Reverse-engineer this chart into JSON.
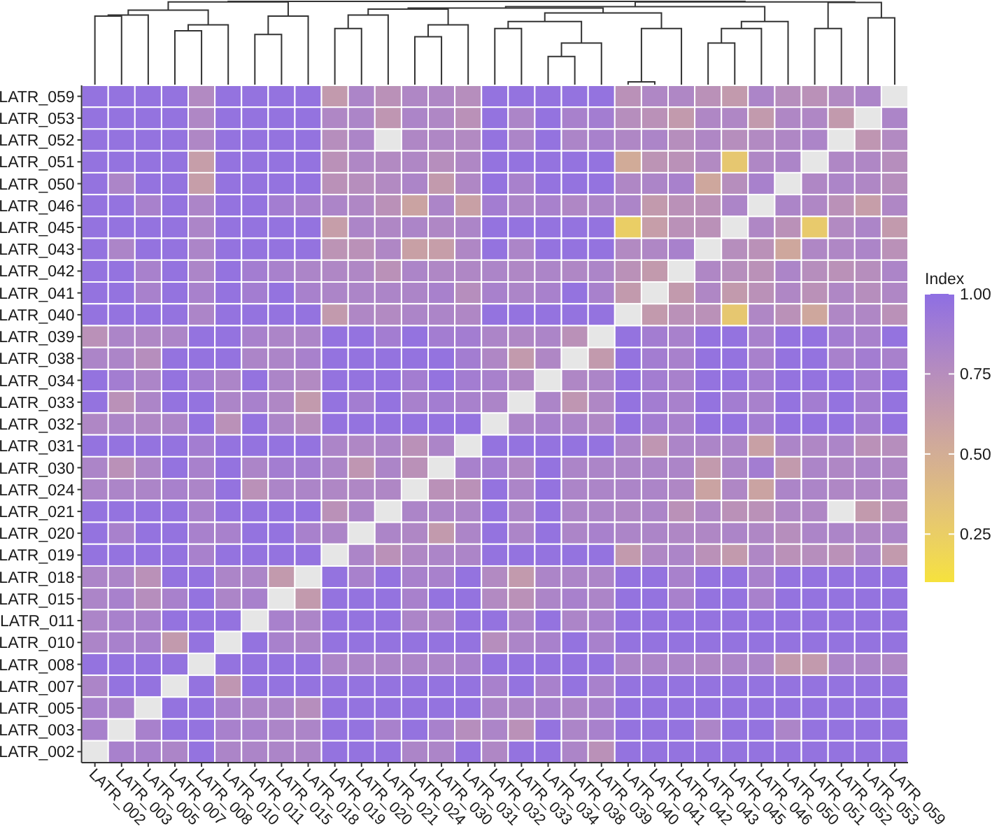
{
  "chart_data": {
    "type": "heatmap",
    "categories": [
      "LATR_002",
      "LATR_003",
      "LATR_005",
      "LATR_007",
      "LATR_008",
      "LATR_010",
      "LATR_011",
      "LATR_015",
      "LATR_018",
      "LATR_019",
      "LATR_020",
      "LATR_021",
      "LATR_024",
      "LATR_030",
      "LATR_031",
      "LATR_032",
      "LATR_033",
      "LATR_034",
      "LATR_038",
      "LATR_039",
      "LATR_040",
      "LATR_041",
      "LATR_042",
      "LATR_043",
      "LATR_045",
      "LATR_046",
      "LATR_050",
      "LATR_051",
      "LATR_052",
      "LATR_053",
      "LATR_059"
    ],
    "y_categories": [
      "LATR_059",
      "LATR_053",
      "LATR_052",
      "LATR_051",
      "LATR_050",
      "LATR_046",
      "LATR_045",
      "LATR_043",
      "LATR_042",
      "LATR_041",
      "LATR_040",
      "LATR_039",
      "LATR_038",
      "LATR_034",
      "LATR_033",
      "LATR_032",
      "LATR_031",
      "LATR_030",
      "LATR_024",
      "LATR_021",
      "LATR_020",
      "LATR_019",
      "LATR_018",
      "LATR_015",
      "LATR_011",
      "LATR_010",
      "LATR_008",
      "LATR_007",
      "LATR_005",
      "LATR_003",
      "LATR_002"
    ],
    "cells": [
      [
        0.97,
        0.97,
        0.97,
        0.97,
        0.78,
        0.97,
        0.97,
        0.97,
        0.97,
        0.65,
        0.82,
        0.72,
        0.8,
        0.8,
        0.75,
        0.97,
        0.97,
        0.97,
        0.97,
        0.97,
        0.72,
        0.8,
        0.8,
        0.72,
        0.65,
        0.82,
        0.75,
        0.72,
        0.78,
        0.82,
        null
      ],
      [
        0.97,
        0.97,
        0.97,
        0.97,
        0.8,
        0.97,
        0.97,
        0.97,
        0.97,
        0.8,
        0.82,
        0.68,
        0.82,
        0.8,
        0.72,
        0.97,
        0.82,
        0.97,
        0.85,
        0.88,
        0.75,
        0.72,
        0.65,
        0.8,
        0.8,
        0.65,
        0.8,
        0.8,
        0.65,
        null,
        0.82
      ],
      [
        0.97,
        0.97,
        0.97,
        0.97,
        0.8,
        0.97,
        0.97,
        0.97,
        0.97,
        0.75,
        0.82,
        null,
        0.8,
        0.8,
        0.78,
        0.97,
        0.82,
        0.97,
        0.82,
        0.85,
        0.8,
        0.82,
        0.75,
        0.8,
        0.75,
        0.78,
        0.8,
        0.82,
        null,
        0.68,
        0.78
      ],
      [
        0.97,
        0.97,
        0.97,
        0.97,
        0.62,
        0.97,
        0.97,
        0.97,
        0.97,
        0.72,
        0.8,
        0.78,
        0.8,
        0.75,
        0.8,
        0.97,
        0.97,
        0.97,
        0.97,
        0.97,
        0.52,
        0.7,
        0.72,
        0.78,
        0.3,
        0.8,
        0.82,
        null,
        0.8,
        0.8,
        0.75
      ],
      [
        0.97,
        0.82,
        0.97,
        0.97,
        0.62,
        0.97,
        0.97,
        0.97,
        0.97,
        0.72,
        0.75,
        0.78,
        0.82,
        0.65,
        0.8,
        0.97,
        0.85,
        0.97,
        0.97,
        0.97,
        0.8,
        0.82,
        0.85,
        0.55,
        0.75,
        0.85,
        null,
        0.8,
        0.82,
        0.8,
        0.75
      ],
      [
        0.97,
        0.97,
        0.85,
        0.97,
        0.82,
        0.97,
        0.97,
        0.88,
        0.85,
        0.82,
        0.8,
        0.72,
        0.58,
        0.82,
        0.6,
        0.88,
        0.82,
        0.85,
        0.8,
        0.82,
        0.82,
        0.65,
        0.72,
        0.72,
        0.82,
        null,
        0.82,
        0.8,
        0.72,
        0.62,
        0.8
      ],
      [
        0.97,
        0.97,
        0.97,
        0.97,
        0.82,
        0.97,
        0.97,
        0.97,
        0.97,
        0.62,
        0.82,
        0.8,
        0.82,
        0.8,
        0.82,
        0.97,
        0.97,
        0.97,
        0.97,
        0.97,
        0.25,
        0.62,
        0.72,
        0.72,
        null,
        0.8,
        0.72,
        0.28,
        0.78,
        0.82,
        0.65
      ],
      [
        0.97,
        0.82,
        0.97,
        0.97,
        0.82,
        0.97,
        0.97,
        0.97,
        0.97,
        0.7,
        0.72,
        0.8,
        0.6,
        0.62,
        0.8,
        0.97,
        0.82,
        0.97,
        0.97,
        0.97,
        0.78,
        0.8,
        0.85,
        null,
        0.75,
        0.72,
        0.55,
        0.8,
        0.8,
        0.82,
        0.72
      ],
      [
        0.97,
        0.97,
        0.85,
        0.97,
        0.82,
        0.97,
        0.88,
        0.85,
        0.82,
        0.8,
        0.8,
        0.72,
        0.82,
        0.8,
        0.8,
        0.82,
        0.8,
        0.82,
        0.8,
        0.82,
        0.72,
        0.65,
        null,
        0.8,
        0.75,
        0.72,
        0.82,
        0.75,
        0.72,
        0.75,
        0.82
      ],
      [
        0.97,
        0.97,
        0.85,
        0.97,
        0.85,
        0.97,
        0.88,
        0.97,
        0.85,
        0.82,
        0.82,
        0.82,
        0.82,
        0.85,
        0.75,
        0.85,
        0.82,
        0.85,
        0.97,
        0.85,
        0.65,
        null,
        0.65,
        0.8,
        0.65,
        0.72,
        0.8,
        0.72,
        0.8,
        0.75,
        0.8
      ],
      [
        0.97,
        0.97,
        0.97,
        0.97,
        0.82,
        0.97,
        0.97,
        0.97,
        0.97,
        0.65,
        0.8,
        0.78,
        0.82,
        0.82,
        0.8,
        0.97,
        0.97,
        0.97,
        0.97,
        0.97,
        null,
        0.65,
        0.72,
        0.72,
        0.3,
        0.8,
        0.72,
        0.55,
        0.8,
        0.8,
        0.72
      ],
      [
        0.72,
        0.82,
        0.8,
        0.82,
        0.97,
        0.97,
        0.85,
        0.82,
        0.82,
        0.97,
        0.97,
        0.88,
        0.97,
        0.88,
        0.88,
        0.82,
        0.8,
        0.82,
        0.72,
        null,
        0.97,
        0.88,
        0.85,
        0.97,
        0.97,
        0.85,
        0.97,
        0.97,
        0.88,
        0.85,
        0.97
      ],
      [
        0.82,
        0.82,
        0.75,
        0.97,
        0.97,
        0.97,
        0.82,
        0.82,
        0.85,
        0.97,
        0.97,
        0.97,
        0.97,
        0.97,
        0.88,
        0.8,
        0.65,
        0.8,
        null,
        0.65,
        0.97,
        0.88,
        0.85,
        0.97,
        0.97,
        0.85,
        0.97,
        0.97,
        0.85,
        0.88,
        0.85
      ],
      [
        0.97,
        0.88,
        0.82,
        0.97,
        0.88,
        0.82,
        0.97,
        0.82,
        0.78,
        0.97,
        0.97,
        0.97,
        0.88,
        0.97,
        0.88,
        0.85,
        0.8,
        null,
        0.8,
        0.82,
        0.97,
        0.88,
        0.85,
        0.97,
        0.97,
        0.88,
        0.97,
        0.97,
        0.97,
        0.88,
        0.97
      ],
      [
        0.97,
        0.72,
        0.82,
        0.97,
        0.97,
        0.82,
        0.85,
        0.8,
        0.65,
        0.97,
        0.88,
        0.97,
        0.85,
        0.88,
        0.85,
        0.82,
        null,
        0.82,
        0.68,
        0.8,
        0.97,
        0.88,
        0.85,
        0.97,
        0.88,
        0.85,
        0.97,
        0.88,
        0.97,
        0.88,
        0.97
      ],
      [
        0.8,
        0.82,
        0.8,
        0.82,
        0.97,
        0.72,
        0.97,
        0.82,
        0.75,
        0.97,
        0.97,
        0.97,
        0.97,
        0.97,
        0.97,
        null,
        0.82,
        0.85,
        0.82,
        0.8,
        0.97,
        0.88,
        0.85,
        0.97,
        0.97,
        0.88,
        0.97,
        0.97,
        0.97,
        0.88,
        0.97
      ],
      [
        0.97,
        0.97,
        0.97,
        0.97,
        0.88,
        0.97,
        0.97,
        0.97,
        0.97,
        0.82,
        0.8,
        0.82,
        0.72,
        0.82,
        null,
        0.97,
        0.97,
        0.97,
        0.97,
        0.97,
        0.82,
        0.68,
        0.82,
        0.82,
        0.82,
        0.6,
        0.82,
        0.8,
        0.82,
        0.72,
        0.75
      ],
      [
        0.82,
        0.72,
        0.82,
        0.97,
        0.85,
        0.97,
        0.82,
        0.88,
        0.88,
        0.82,
        0.68,
        0.82,
        0.72,
        null,
        0.85,
        0.88,
        0.8,
        0.97,
        0.82,
        0.82,
        0.82,
        0.82,
        0.82,
        0.65,
        0.82,
        0.88,
        0.65,
        0.82,
        0.8,
        0.82,
        0.8
      ],
      [
        0.82,
        0.82,
        0.82,
        0.85,
        0.82,
        0.97,
        0.72,
        0.82,
        0.82,
        0.8,
        0.8,
        0.8,
        null,
        0.72,
        0.72,
        0.97,
        0.82,
        0.97,
        0.82,
        0.82,
        0.82,
        0.82,
        0.8,
        0.58,
        0.8,
        0.58,
        0.82,
        0.82,
        0.8,
        0.8,
        0.8
      ],
      [
        0.97,
        0.97,
        0.97,
        0.97,
        0.85,
        0.97,
        0.97,
        0.97,
        0.97,
        0.72,
        0.82,
        null,
        0.82,
        0.82,
        0.82,
        0.97,
        0.82,
        0.97,
        0.82,
        0.82,
        0.8,
        0.82,
        0.72,
        0.8,
        0.72,
        0.72,
        0.8,
        0.8,
        null,
        0.65,
        0.72
      ],
      [
        0.97,
        0.85,
        0.97,
        0.97,
        0.85,
        0.85,
        0.97,
        0.97,
        0.85,
        0.82,
        null,
        0.82,
        0.8,
        0.65,
        0.82,
        0.97,
        0.82,
        0.97,
        0.82,
        0.85,
        0.82,
        0.82,
        0.8,
        0.8,
        0.82,
        0.8,
        0.75,
        0.82,
        0.82,
        0.8,
        0.82
      ],
      [
        0.97,
        0.97,
        0.97,
        0.97,
        0.85,
        0.97,
        0.97,
        0.97,
        0.97,
        null,
        0.82,
        0.72,
        0.8,
        0.82,
        0.82,
        0.97,
        0.97,
        0.97,
        0.97,
        0.97,
        0.65,
        0.8,
        0.82,
        0.72,
        0.65,
        0.8,
        0.72,
        0.75,
        0.72,
        0.82,
        0.65
      ],
      [
        0.82,
        0.82,
        0.72,
        0.97,
        0.97,
        0.82,
        0.82,
        0.65,
        null,
        0.97,
        0.85,
        0.97,
        0.85,
        0.85,
        0.97,
        0.78,
        0.65,
        0.82,
        0.82,
        0.82,
        0.97,
        0.97,
        0.85,
        0.97,
        0.97,
        0.85,
        0.97,
        0.97,
        0.97,
        0.97,
        0.97
      ],
      [
        0.82,
        0.85,
        0.75,
        0.85,
        0.97,
        0.82,
        0.85,
        null,
        0.65,
        0.97,
        0.97,
        0.97,
        0.85,
        0.97,
        0.97,
        0.78,
        0.72,
        0.82,
        0.85,
        0.82,
        0.97,
        0.97,
        0.85,
        0.97,
        0.97,
        0.85,
        0.97,
        0.97,
        0.97,
        0.97,
        0.97
      ],
      [
        0.82,
        0.85,
        0.85,
        0.97,
        0.97,
        0.97,
        null,
        0.85,
        0.82,
        0.97,
        0.97,
        0.97,
        0.82,
        0.82,
        0.97,
        0.97,
        0.82,
        0.97,
        0.82,
        0.85,
        0.97,
        0.97,
        0.97,
        0.97,
        0.97,
        0.97,
        0.97,
        0.97,
        0.97,
        0.97,
        0.97
      ],
      [
        0.82,
        0.85,
        0.85,
        0.65,
        0.97,
        null,
        0.97,
        0.85,
        0.82,
        0.97,
        0.97,
        0.97,
        0.97,
        0.97,
        0.97,
        0.75,
        0.82,
        0.85,
        0.97,
        0.85,
        0.97,
        0.97,
        0.97,
        0.97,
        0.97,
        0.97,
        0.97,
        0.97,
        0.97,
        0.97,
        0.97
      ],
      [
        0.97,
        0.97,
        0.97,
        0.97,
        null,
        0.97,
        0.97,
        0.97,
        0.97,
        0.82,
        0.82,
        0.82,
        0.82,
        0.82,
        0.85,
        0.97,
        0.97,
        0.97,
        0.97,
        0.97,
        0.82,
        0.82,
        0.82,
        0.8,
        0.82,
        0.82,
        0.65,
        0.65,
        0.82,
        0.82,
        0.8
      ],
      [
        0.82,
        0.97,
        0.97,
        null,
        0.97,
        0.68,
        0.97,
        0.97,
        0.97,
        0.97,
        0.97,
        0.97,
        0.97,
        0.97,
        0.97,
        0.85,
        0.97,
        0.85,
        0.97,
        0.85,
        0.97,
        0.97,
        0.97,
        0.97,
        0.97,
        0.97,
        0.97,
        0.97,
        0.97,
        0.97,
        0.97
      ],
      [
        0.85,
        0.85,
        null,
        0.97,
        0.97,
        0.85,
        0.82,
        0.82,
        0.75,
        0.97,
        0.97,
        0.97,
        0.97,
        0.97,
        0.97,
        0.82,
        0.82,
        0.85,
        0.82,
        0.85,
        0.97,
        0.97,
        0.97,
        0.97,
        0.97,
        0.97,
        0.97,
        0.97,
        0.97,
        0.97,
        0.97
      ],
      [
        0.85,
        null,
        0.85,
        0.97,
        0.97,
        0.85,
        0.85,
        0.82,
        0.82,
        0.97,
        0.97,
        0.85,
        0.97,
        0.85,
        0.75,
        0.82,
        0.72,
        0.97,
        0.82,
        0.85,
        0.97,
        0.97,
        0.97,
        0.82,
        0.97,
        0.97,
        0.82,
        0.97,
        0.97,
        0.97,
        0.97
      ],
      [
        null,
        0.85,
        0.85,
        0.82,
        0.97,
        0.82,
        0.82,
        0.82,
        0.82,
        0.97,
        0.97,
        0.97,
        0.82,
        0.82,
        0.97,
        0.8,
        0.97,
        0.97,
        0.82,
        0.72,
        0.97,
        0.97,
        0.97,
        0.97,
        0.97,
        0.97,
        0.97,
        0.97,
        0.97,
        0.97,
        0.97
      ]
    ],
    "clabel": "Index",
    "clim": [
      0.1,
      1
    ],
    "cticks": [
      0.25,
      {
        "value": 0.5,
        "label": "0.50"
      },
      0.75,
      {
        "value": 1,
        "label": "1.00"
      }
    ]
  }
}
